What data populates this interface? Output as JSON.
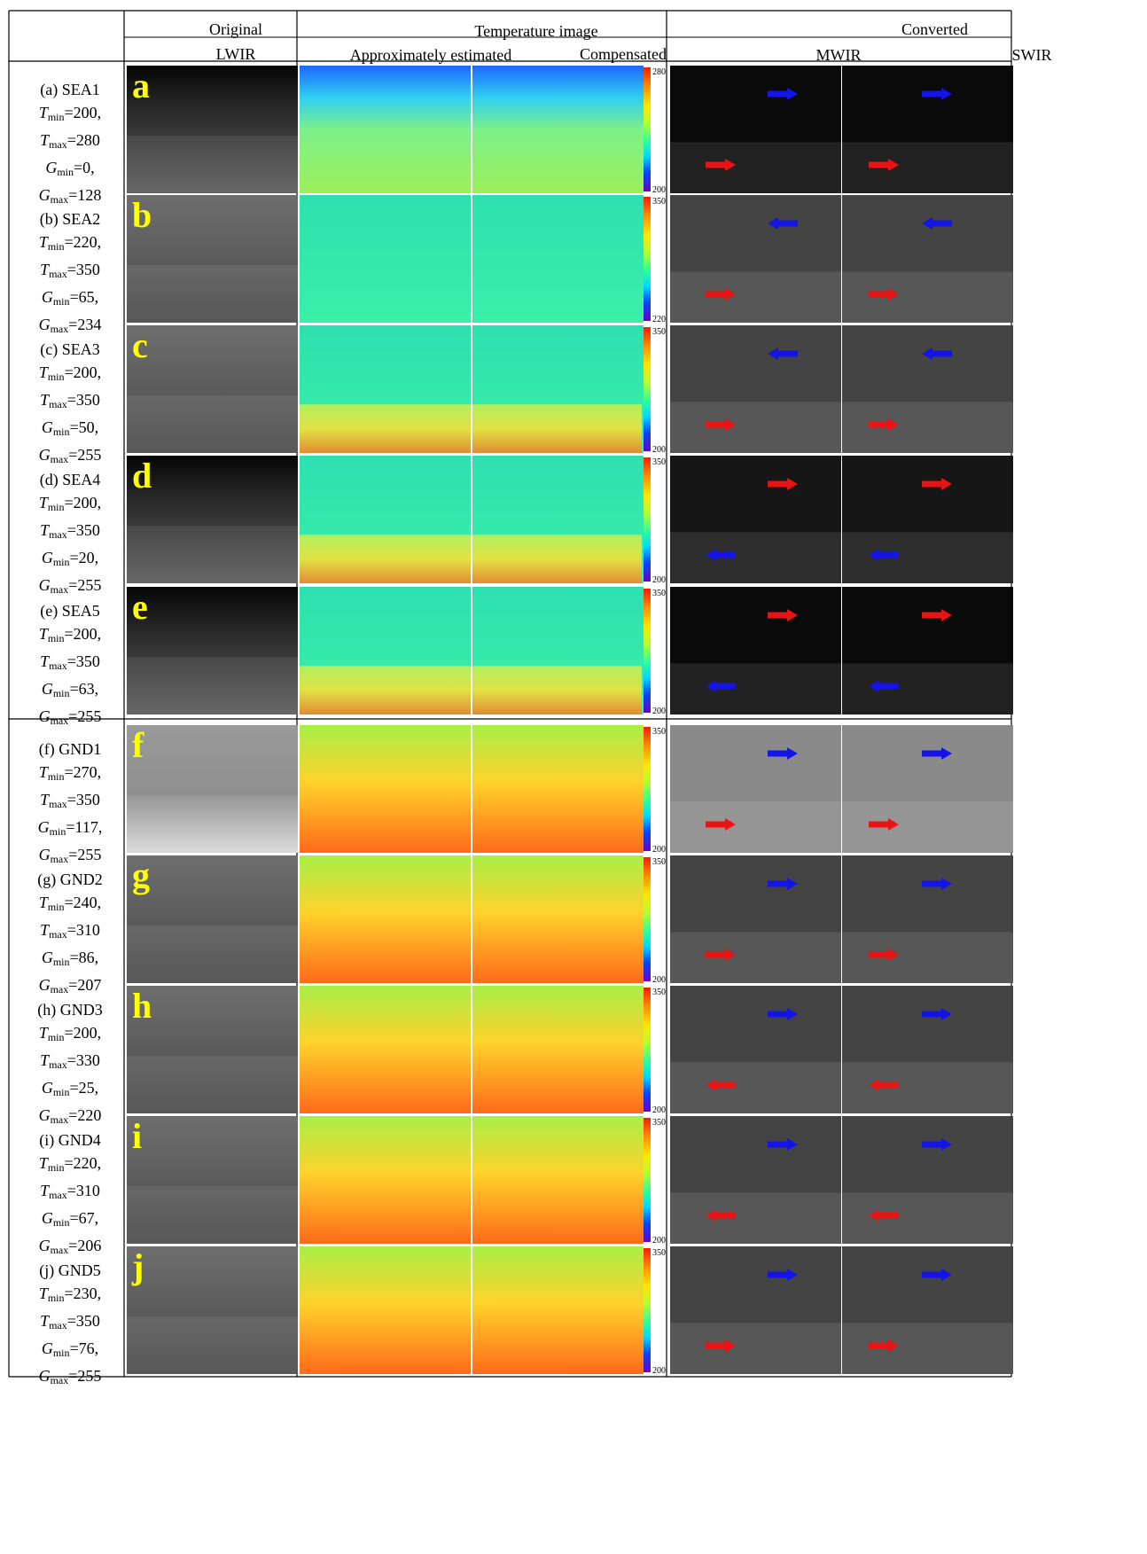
{
  "header": {
    "original": "Original",
    "lwir": "LWIR",
    "temperature_image": "Temperature image",
    "approx": "Approximately estimated",
    "compensated": "Compensated",
    "converted": "Converted",
    "mwir": "MWIR",
    "swir": "SWIR"
  },
  "rows": [
    {
      "letter": "a",
      "name": "(a) SEA1",
      "tmin": "200",
      "tmax": "280",
      "gmin": "0",
      "gmax": "128",
      "cb_top": "280",
      "cb_bottom": "200",
      "mwir_arrows": [
        {
          "color": "blue",
          "dir": "right"
        },
        {
          "color": "red",
          "dir": "right"
        }
      ],
      "swir_arrows": [
        {
          "color": "blue",
          "dir": "right"
        },
        {
          "color": "red",
          "dir": "right"
        }
      ]
    },
    {
      "letter": "b",
      "name": "(b) SEA2",
      "tmin": "220",
      "tmax": "350",
      "gmin": "65",
      "gmax": "234",
      "cb_top": "350",
      "cb_bottom": "220",
      "mwir_arrows": [
        {
          "color": "blue",
          "dir": "left"
        },
        {
          "color": "red",
          "dir": "right"
        }
      ],
      "swir_arrows": [
        {
          "color": "blue",
          "dir": "left"
        },
        {
          "color": "red",
          "dir": "right"
        }
      ]
    },
    {
      "letter": "c",
      "name": "(c) SEA3",
      "tmin": "200",
      "tmax": "350",
      "gmin": "50",
      "gmax": "255",
      "cb_top": "350",
      "cb_bottom": "200",
      "mwir_arrows": [
        {
          "color": "blue",
          "dir": "left"
        },
        {
          "color": "red",
          "dir": "right"
        }
      ],
      "swir_arrows": [
        {
          "color": "blue",
          "dir": "left"
        },
        {
          "color": "red",
          "dir": "right"
        }
      ]
    },
    {
      "letter": "d",
      "name": "(d) SEA4",
      "tmin": "200",
      "tmax": "350",
      "gmin": "20",
      "gmax": "255",
      "cb_top": "350",
      "cb_bottom": "200",
      "mwir_arrows": [
        {
          "color": "red",
          "dir": "right"
        },
        {
          "color": "blue",
          "dir": "left"
        }
      ],
      "swir_arrows": [
        {
          "color": "red",
          "dir": "right"
        },
        {
          "color": "blue",
          "dir": "left"
        }
      ]
    },
    {
      "letter": "e",
      "name": "(e) SEA5",
      "tmin": "200",
      "tmax": "350",
      "gmin": "63",
      "gmax": "255",
      "cb_top": "350",
      "cb_bottom": "200",
      "mwir_arrows": [
        {
          "color": "red",
          "dir": "right"
        },
        {
          "color": "blue",
          "dir": "left"
        }
      ],
      "swir_arrows": [
        {
          "color": "red",
          "dir": "right"
        },
        {
          "color": "blue",
          "dir": "left"
        }
      ]
    },
    {
      "letter": "f",
      "name": "(f) GND1",
      "tmin": "270",
      "tmax": "350",
      "gmin": "117",
      "gmax": "255",
      "cb_top": "350",
      "cb_bottom": "200",
      "mwir_arrows": [
        {
          "color": "blue",
          "dir": "right"
        },
        {
          "color": "red",
          "dir": "right"
        }
      ],
      "swir_arrows": [
        {
          "color": "blue",
          "dir": "right"
        },
        {
          "color": "red",
          "dir": "right"
        }
      ]
    },
    {
      "letter": "g",
      "name": "(g) GND2",
      "tmin": "240",
      "tmax": "310",
      "gmin": "86",
      "gmax": "207",
      "cb_top": "350",
      "cb_bottom": "200",
      "mwir_arrows": [
        {
          "color": "blue",
          "dir": "right"
        },
        {
          "color": "red",
          "dir": "right"
        }
      ],
      "swir_arrows": [
        {
          "color": "blue",
          "dir": "right"
        },
        {
          "color": "red",
          "dir": "right"
        }
      ]
    },
    {
      "letter": "h",
      "name": "(h) GND3",
      "tmin": "200",
      "tmax": "330",
      "gmin": "25",
      "gmax": "220",
      "cb_top": "350",
      "cb_bottom": "200",
      "mwir_arrows": [
        {
          "color": "blue",
          "dir": "right"
        },
        {
          "color": "red",
          "dir": "left"
        }
      ],
      "swir_arrows": [
        {
          "color": "blue",
          "dir": "right"
        },
        {
          "color": "red",
          "dir": "left"
        }
      ]
    },
    {
      "letter": "i",
      "name": "(i) GND4",
      "tmin": "220",
      "tmax": "310",
      "gmin": "67",
      "gmax": "206",
      "cb_top": "350",
      "cb_bottom": "200",
      "mwir_arrows": [
        {
          "color": "blue",
          "dir": "right"
        },
        {
          "color": "red",
          "dir": "left"
        }
      ],
      "swir_arrows": [
        {
          "color": "blue",
          "dir": "right"
        },
        {
          "color": "red",
          "dir": "left"
        }
      ]
    },
    {
      "letter": "j",
      "name": "(j) GND5",
      "tmin": "230",
      "tmax": "350",
      "gmin": "76",
      "gmax": "255",
      "cb_top": "350",
      "cb_bottom": "200",
      "mwir_arrows": [
        {
          "color": "blue",
          "dir": "right"
        },
        {
          "color": "red",
          "dir": "right"
        }
      ],
      "swir_arrows": [
        {
          "color": "blue",
          "dir": "right"
        },
        {
          "color": "red",
          "dir": "right"
        }
      ]
    }
  ],
  "colors": {
    "border": "#000000",
    "letter": "#ffff00",
    "arrow_blue": "#1414e6",
    "arrow_red": "#e61414"
  }
}
